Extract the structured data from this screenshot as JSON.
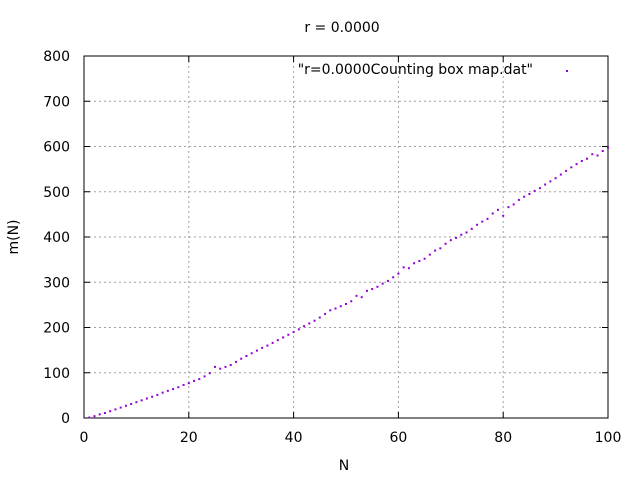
{
  "chart_data": {
    "type": "scatter",
    "title": "r = 0.0000",
    "xlabel": "N",
    "ylabel": "m(N)",
    "xlim": [
      0,
      100
    ],
    "ylim": [
      0,
      800
    ],
    "xticks": [
      0,
      20,
      40,
      60,
      80,
      100
    ],
    "yticks": [
      0,
      100,
      200,
      300,
      400,
      500,
      600,
      700,
      800
    ],
    "xtick_labels": [
      "0",
      "20",
      "40",
      "60",
      "80",
      "100"
    ],
    "ytick_labels": [
      "0",
      "100",
      "200",
      "300",
      "400",
      "500",
      "600",
      "700",
      "800"
    ],
    "grid": true,
    "legend_position": "top-right",
    "series": [
      {
        "name": "\"r=0.0000Counting box map.dat\"",
        "color": "#9400d3",
        "marker": "dot",
        "x": [
          1,
          2,
          3,
          4,
          5,
          6,
          7,
          8,
          9,
          10,
          11,
          12,
          13,
          14,
          15,
          16,
          17,
          18,
          19,
          20,
          21,
          22,
          23,
          24,
          25,
          26,
          27,
          28,
          29,
          30,
          31,
          32,
          33,
          34,
          35,
          36,
          37,
          38,
          39,
          40,
          41,
          42,
          43,
          44,
          45,
          46,
          47,
          48,
          49,
          50,
          51,
          52,
          53,
          54,
          55,
          56,
          57,
          58,
          59,
          60,
          61,
          62,
          63,
          64,
          65,
          66,
          67,
          68,
          69,
          70,
          71,
          72,
          73,
          74,
          75,
          76,
          77,
          78,
          79,
          80,
          81,
          82,
          83,
          84,
          85,
          86,
          87,
          88,
          89,
          90,
          91,
          92,
          93,
          94,
          95,
          96,
          97,
          98,
          99,
          100
        ],
        "y": [
          1,
          4,
          8,
          11,
          15,
          19,
          23,
          27,
          31,
          35,
          39,
          43,
          47,
          51,
          56,
          60,
          64,
          68,
          73,
          77,
          82,
          86,
          92,
          99,
          113,
          109,
          113,
          117,
          124,
          131,
          137,
          143,
          149,
          155,
          160,
          166,
          172,
          178,
          184,
          190,
          196,
          203,
          209,
          215,
          222,
          230,
          238,
          242,
          247,
          252,
          258,
          270,
          267,
          281,
          285,
          290,
          297,
          303,
          311,
          319,
          333,
          331,
          342,
          347,
          352,
          361,
          370,
          375,
          385,
          393,
          398,
          405,
          410,
          418,
          427,
          434,
          440,
          452,
          460,
          447,
          466,
          472,
          482,
          489,
          495,
          502,
          508,
          516,
          523,
          530,
          538,
          546,
          554,
          561,
          568,
          573,
          583,
          580,
          590,
          598
        ]
      }
    ]
  }
}
